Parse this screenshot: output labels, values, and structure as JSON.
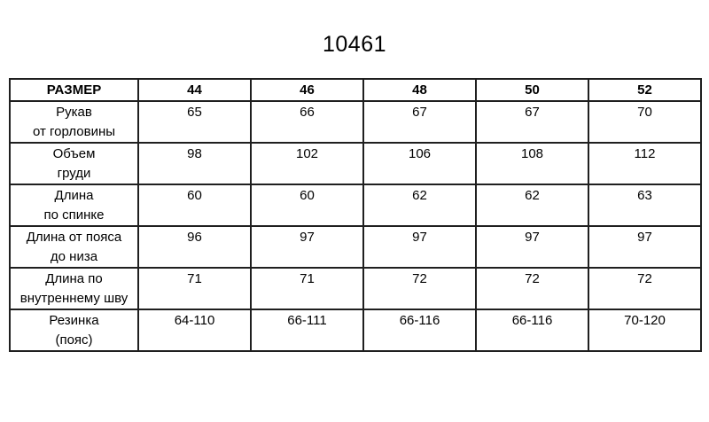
{
  "page": {
    "title": "10461"
  },
  "table": {
    "header": {
      "size_label": "РАЗМЕР",
      "sizes": [
        "44",
        "46",
        "48",
        "50",
        "52"
      ]
    },
    "rows": [
      {
        "label1": "Рукав",
        "label2": "от горловины",
        "values": [
          "65",
          "66",
          "67",
          "67",
          "70"
        ]
      },
      {
        "label1": "Объем",
        "label2": "груди",
        "values": [
          "98",
          "102",
          "106",
          "108",
          "112"
        ]
      },
      {
        "label1": "Длина",
        "label2": "по спинке",
        "values": [
          "60",
          "60",
          "62",
          "62",
          "63"
        ]
      },
      {
        "label1": "Длина от пояса",
        "label2": "до низа",
        "values": [
          "96",
          "97",
          "97",
          "97",
          "97"
        ]
      },
      {
        "label1": "Длина по",
        "label2": "внутреннему шву",
        "values": [
          "71",
          "71",
          "72",
          "72",
          "72"
        ]
      },
      {
        "label1": "Резинка",
        "label2": "(пояс)",
        "values": [
          "64-110",
          "66-111",
          "66-116",
          "66-116",
          "70-120"
        ]
      }
    ]
  },
  "colors": {
    "border": "#1f1f1f",
    "text": "#000000",
    "background": "#ffffff"
  }
}
